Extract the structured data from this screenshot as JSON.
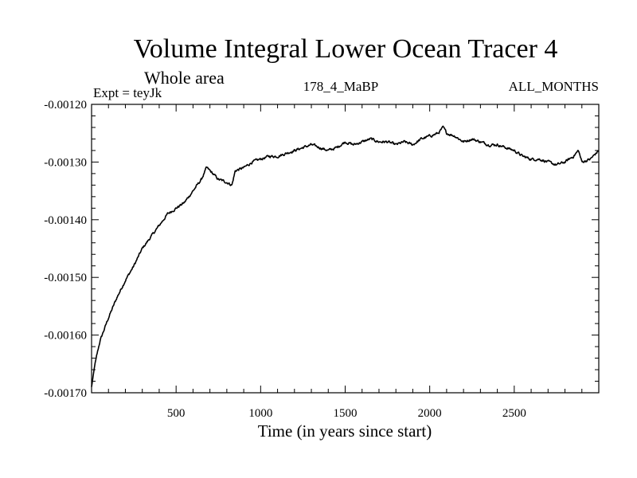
{
  "chart_data": {
    "type": "line",
    "title": "Volume Integral Lower Ocean Tracer 4",
    "subtitle": "Whole area",
    "expt_label": "Expt = teyJk",
    "run_label": "178_4_MaBP",
    "months_label": "ALL_MONTHS",
    "xlabel": "Time (in years since start)",
    "ylabel": "",
    "xlim": [
      0,
      3000
    ],
    "ylim": [
      -0.0017,
      -0.0012
    ],
    "x_ticks": [
      500,
      1000,
      1500,
      2000,
      2500
    ],
    "x_tick_labels": [
      "500",
      "1000",
      "1500",
      "2000",
      "2500"
    ],
    "y_ticks": [
      -0.0017,
      -0.0016,
      -0.0015,
      -0.0014,
      -0.0013,
      -0.0012
    ],
    "y_tick_labels": [
      "-0.00170",
      "-0.00160",
      "-0.00150",
      "-0.00140",
      "-0.00130",
      "-0.00120"
    ],
    "grid": false,
    "series": [
      {
        "name": "Volume Integral Lower Ocean Tracer 4",
        "color": "#000000",
        "x": [
          0,
          20,
          50,
          100,
          150,
          200,
          250,
          300,
          350,
          400,
          450,
          500,
          550,
          600,
          650,
          680,
          700,
          750,
          800,
          830,
          850,
          900,
          950,
          1000,
          1050,
          1100,
          1150,
          1200,
          1250,
          1300,
          1350,
          1400,
          1450,
          1500,
          1550,
          1600,
          1650,
          1700,
          1750,
          1800,
          1850,
          1900,
          1950,
          2000,
          2050,
          2080,
          2100,
          2150,
          2200,
          2250,
          2300,
          2350,
          2400,
          2450,
          2500,
          2550,
          2600,
          2650,
          2700,
          2750,
          2800,
          2850,
          2880,
          2900,
          2950,
          3000
        ],
        "values": [
          -0.00169,
          -0.00165,
          -0.00161,
          -0.00157,
          -0.001535,
          -0.001505,
          -0.00148,
          -0.00145,
          -0.00143,
          -0.00141,
          -0.00139,
          -0.00138,
          -0.00137,
          -0.00135,
          -0.00133,
          -0.00131,
          -0.001315,
          -0.00133,
          -0.001335,
          -0.00134,
          -0.001315,
          -0.00131,
          -0.0013,
          -0.001295,
          -0.00129,
          -0.00129,
          -0.001285,
          -0.00128,
          -0.001275,
          -0.00127,
          -0.001275,
          -0.00128,
          -0.001275,
          -0.001265,
          -0.00127,
          -0.001265,
          -0.00126,
          -0.001265,
          -0.001265,
          -0.00127,
          -0.001265,
          -0.00127,
          -0.00126,
          -0.001255,
          -0.00125,
          -0.00124,
          -0.00125,
          -0.001255,
          -0.001265,
          -0.00126,
          -0.001265,
          -0.00127,
          -0.00127,
          -0.001275,
          -0.00128,
          -0.00129,
          -0.001295,
          -0.001295,
          -0.0013,
          -0.001305,
          -0.0013,
          -0.00129,
          -0.00128,
          -0.0013,
          -0.001295,
          -0.00128
        ]
      }
    ]
  }
}
